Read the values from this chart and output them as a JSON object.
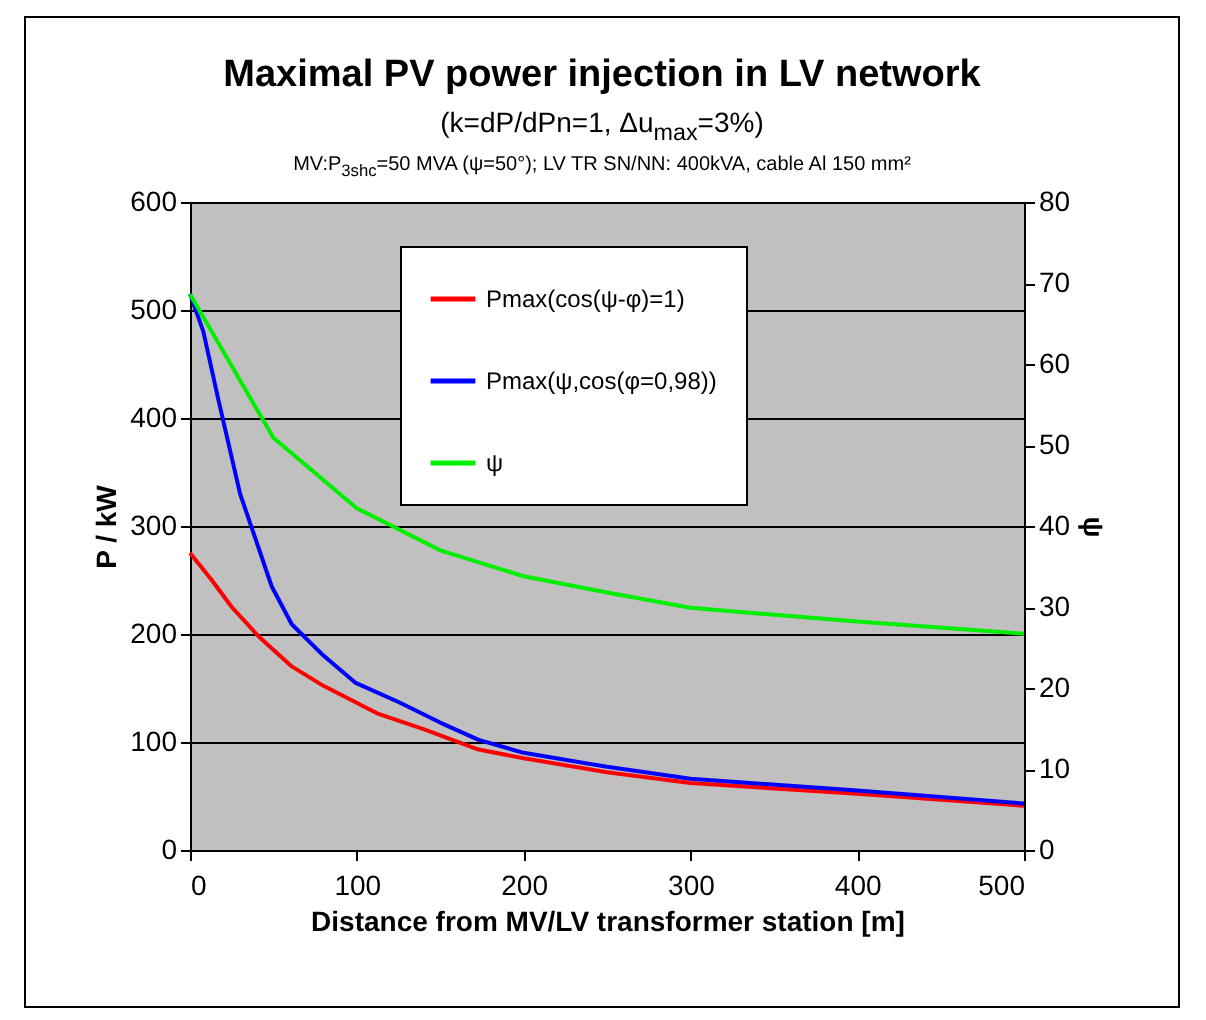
{
  "chart_data": {
    "type": "line",
    "title": "Maximal PV power injection in LV network",
    "subtitle": [
      "(k=dP/dPn=1, Δu$_{max}$=3%)",
      "MV:P$_{3shc}$=50 MVA (ψ=50°); LV TR SN/NN: 400kVA, cable Al 150 mm²"
    ],
    "xlabel": "Distance from MV/LV transformer station [m]",
    "ylabel": "P / kW",
    "y2label": "ψ",
    "xlim": [
      0,
      500
    ],
    "xticks": [
      0,
      100,
      200,
      300,
      400,
      500
    ],
    "ylim": [
      0,
      600
    ],
    "yticks": [
      0,
      100,
      200,
      300,
      400,
      500,
      600
    ],
    "y2lim": [
      0,
      80
    ],
    "y2ticks": [
      0,
      10,
      20,
      30,
      40,
      50,
      60,
      70,
      80
    ],
    "grid": "y",
    "legend": "top right",
    "line_style": "solid",
    "marker": "none",
    "series": [
      {
        "name": "Pmax(cos(ψ-φ)=1)",
        "color": "#ff0000",
        "x": [
          0,
          13,
          25,
          41,
          61,
          80,
          99,
          113,
          140,
          173,
          200,
          250,
          300,
          400,
          500
        ],
        "values": [
          275,
          250,
          225,
          198,
          170,
          152,
          137,
          126,
          112,
          93,
          85,
          72,
          62,
          52,
          41
        ]
      },
      {
        "name": "Pmax(ψ,cos(φ=0,98))",
        "color": "#0000ff",
        "x": [
          0,
          8,
          17,
          30,
          49,
          61,
          80,
          99,
          125,
          150,
          173,
          200,
          250,
          300,
          400,
          500
        ],
        "values": [
          515,
          480,
          417,
          330,
          244,
          209,
          180,
          155,
          137,
          118,
          102,
          90,
          77,
          66,
          55,
          43
        ]
      },
      {
        "name": "ψ",
        "color": "#00ee00",
        "axis": "y2",
        "x": [
          0,
          50,
          100,
          150,
          200,
          250,
          300,
          400,
          500
        ],
        "values": [
          68.6,
          50.9,
          42.2,
          37.0,
          33.8,
          31.8,
          29.9,
          28.2,
          26.7
        ]
      }
    ]
  }
}
